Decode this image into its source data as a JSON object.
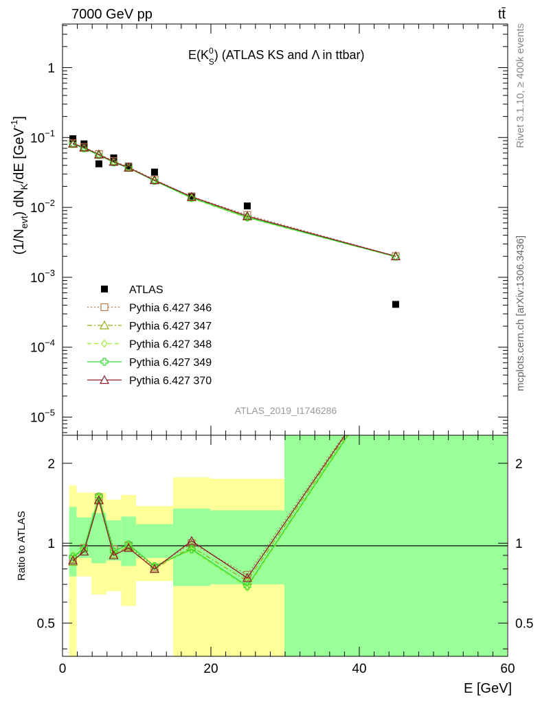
{
  "header": {
    "energy_label": "7000 GeV pp",
    "process_label": "tt̄"
  },
  "side_labels": {
    "rivet": "Rivet 3.1.10, ≥ 400k events",
    "mcplots": "mcplots.cern.ch [arXiv:1306.3436]"
  },
  "chart_data": [
    {
      "type": "scatter",
      "title": "E(K⁰S) (ATLAS KS and Λ in ttbar)",
      "title_parts": {
        "main": "E(K",
        "sup": "0",
        "sub": "S",
        "rest": ") (ATLAS KS and Λ in ttbar)"
      },
      "ylabel": "(1/Nevt) dNK/dE [GeV⁻¹]",
      "ylabel_parts": {
        "a": "(1/N",
        "b": "evt",
        "c": ") dN",
        "d": "K",
        "e": "/dE [GeV",
        "f": "-1",
        "g": "]"
      },
      "xlabel": "E [GeV]",
      "y_scale": "log",
      "ylim": [
        5.5e-06,
        4.2
      ],
      "xlim": [
        0,
        60
      ],
      "y_ticks": [
        {
          "value": 1,
          "label": "1"
        },
        {
          "value": 0.1,
          "base": "10",
          "exp": "−1"
        },
        {
          "value": 0.01,
          "base": "10",
          "exp": "−2"
        },
        {
          "value": 0.001,
          "base": "10",
          "exp": "−3"
        },
        {
          "value": 0.0001,
          "base": "10",
          "exp": "−4"
        },
        {
          "value": 1e-05,
          "base": "10",
          "exp": "−5"
        }
      ],
      "watermark": "ATLAS_2019_I1746286",
      "legend_position": "bottom-left",
      "x": [
        1.4,
        2.9,
        4.9,
        6.9,
        8.9,
        12.4,
        17.4,
        24.9,
        44.9
      ],
      "series": [
        {
          "name": "ATLAS",
          "style": "data",
          "marker": "square",
          "color": "#000000",
          "values": [
            0.096,
            0.081,
            0.042,
            0.051,
            0.039,
            0.032,
            0.0145,
            0.0105,
            0.00041
          ]
        },
        {
          "name": "Pythia 6.427 346",
          "style": "dotted",
          "marker": "open-square",
          "color": "#b07a4a",
          "values": [
            0.083,
            0.073,
            0.058,
            0.046,
            0.038,
            0.025,
            0.0143,
            0.0078,
            0.00201
          ]
        },
        {
          "name": "Pythia 6.427 347",
          "style": "dashdot",
          "marker": "open-triangle",
          "color": "#9aac10",
          "values": [
            0.081,
            0.071,
            0.057,
            0.045,
            0.037,
            0.0245,
            0.0139,
            0.0074,
            0.00199
          ]
        },
        {
          "name": "Pythia 6.427 348",
          "style": "dashed",
          "marker": "open-diamond",
          "color": "#9cf030",
          "values": [
            0.08,
            0.07,
            0.056,
            0.044,
            0.0365,
            0.024,
            0.0135,
            0.0071,
            0.00196
          ]
        },
        {
          "name": "Pythia 6.427 349",
          "style": "solid",
          "marker": "open-cross",
          "color": "#30d830",
          "values": [
            0.081,
            0.07,
            0.056,
            0.044,
            0.0368,
            0.024,
            0.0137,
            0.0072,
            0.00197
          ]
        },
        {
          "name": "Pythia 6.427 370",
          "style": "solid",
          "marker": "open-triangle",
          "color": "#8a1a28",
          "values": [
            0.082,
            0.072,
            0.057,
            0.045,
            0.037,
            0.0245,
            0.0142,
            0.0075,
            0.002
          ]
        }
      ]
    },
    {
      "type": "line",
      "ylabel": "Ratio to ATLAS",
      "xlabel": "E [GeV]",
      "y_scale": "log",
      "ylim": [
        0.375,
        2.55
      ],
      "xlim": [
        0,
        60
      ],
      "y_ticks": [
        {
          "value": 2,
          "label": "2"
        },
        {
          "value": 1,
          "label": "1"
        },
        {
          "value": 0.5,
          "label": "0.5"
        }
      ],
      "x_ticks": [
        {
          "value": 0,
          "label": "0"
        },
        {
          "value": 20,
          "label": "20"
        },
        {
          "value": 40,
          "label": "40"
        },
        {
          "value": 60,
          "label": "60"
        }
      ],
      "bands": [
        {
          "x0": 0.9,
          "x1": 1.9,
          "y_lo": 0.36,
          "y_hi": 1.65,
          "g_lo": 0.75,
          "g_hi": 1.37
        },
        {
          "x0": 1.9,
          "x1": 3.9,
          "y_lo": 0.75,
          "y_hi": 1.55,
          "g_lo": 0.88,
          "g_hi": 1.25
        },
        {
          "x0": 3.9,
          "x1": 5.9,
          "y_lo": 0.64,
          "y_hi": 1.55,
          "g_lo": 0.84,
          "g_hi": 1.3
        },
        {
          "x0": 5.9,
          "x1": 7.9,
          "y_lo": 0.66,
          "y_hi": 1.46,
          "g_lo": 0.86,
          "g_hi": 1.22
        },
        {
          "x0": 7.9,
          "x1": 9.9,
          "y_lo": 0.58,
          "y_hi": 1.52,
          "g_lo": 0.82,
          "g_hi": 1.26
        },
        {
          "x0": 9.9,
          "x1": 14.9,
          "y_lo": 0.72,
          "y_hi": 1.38,
          "g_lo": 0.88,
          "g_hi": 1.18
        },
        {
          "x0": 14.9,
          "x1": 19.9,
          "y_lo": 0.36,
          "y_hi": 1.77,
          "g_lo": 0.69,
          "g_hi": 1.35
        },
        {
          "x0": 19.9,
          "x1": 29.9,
          "y_lo": 0.36,
          "y_hi": 1.75,
          "g_lo": 0.7,
          "g_hi": 1.33
        },
        {
          "x0": 29.9,
          "x1": 59.9,
          "y_lo": 0.36,
          "y_hi": 2.6,
          "g_lo": 0.36,
          "g_hi": 2.6
        }
      ],
      "series": [
        {
          "name": "Pythia 6.427 346",
          "style": "dotted",
          "marker": "open-square",
          "color": "#b07a4a",
          "values": [
            0.87,
            0.96,
            1.49,
            0.95,
            0.98,
            0.81,
            1.0,
            0.76,
            4.9
          ]
        },
        {
          "name": "Pythia 6.427 347",
          "style": "dashdot",
          "marker": "open-triangle",
          "color": "#9aac10",
          "values": [
            0.85,
            0.93,
            1.46,
            0.91,
            0.97,
            0.8,
            0.97,
            0.72,
            4.8
          ]
        },
        {
          "name": "Pythia 6.427 348",
          "style": "dashed",
          "marker": "open-diamond",
          "color": "#9cf030",
          "values": [
            0.9,
            0.95,
            1.49,
            0.93,
            0.99,
            0.82,
            0.94,
            0.68,
            4.7
          ]
        },
        {
          "name": "Pythia 6.427 349",
          "style": "solid",
          "marker": "open-cross",
          "color": "#30d830",
          "values": [
            0.89,
            0.95,
            1.5,
            0.93,
            0.99,
            0.82,
            0.95,
            0.69,
            4.75
          ]
        },
        {
          "name": "Pythia 6.427 370",
          "style": "solid",
          "marker": "open-triangle",
          "color": "#8a1a28",
          "values": [
            0.86,
            0.93,
            1.45,
            0.9,
            0.96,
            0.8,
            1.02,
            0.74,
            4.85
          ]
        }
      ]
    }
  ]
}
